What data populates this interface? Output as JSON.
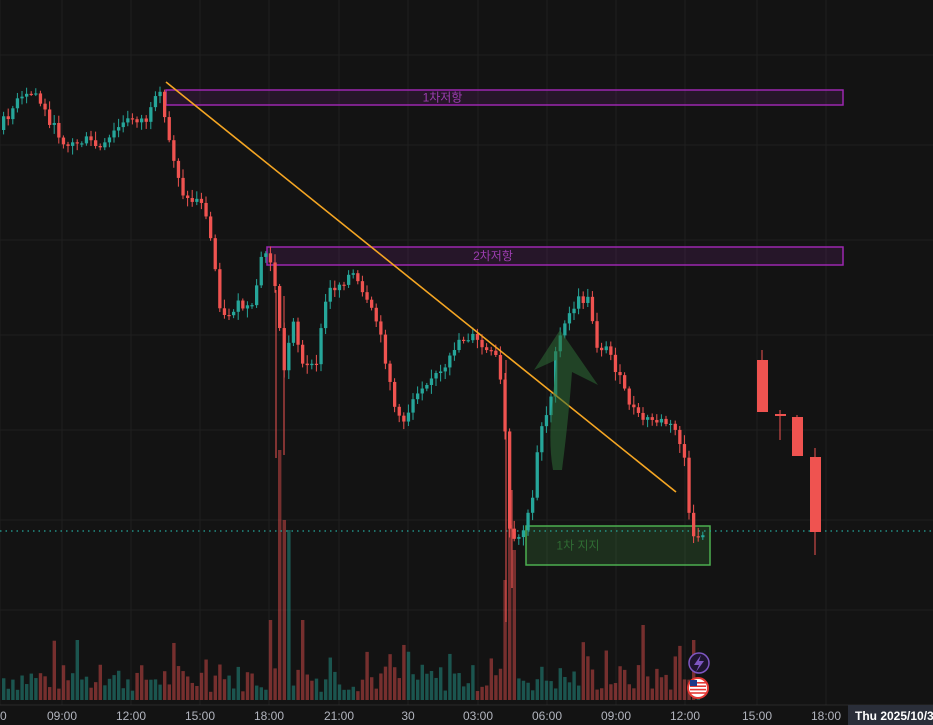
{
  "chart_data": {
    "type": "candlestick",
    "x_ticks": [
      "0",
      "09:00",
      "12:00",
      "15:00",
      "18:00",
      "21:00",
      "30",
      "03:00",
      "06:00",
      "09:00",
      "12:00",
      "15:00",
      "18:00"
    ],
    "crosshair_label": "Thu 2025/10/3",
    "grid": true,
    "zones": [
      {
        "label": "1차저항",
        "kind": "resistance",
        "color": "#9c27b0"
      },
      {
        "label": "2차저항",
        "kind": "resistance",
        "color": "#9c27b0"
      },
      {
        "label": "1차 지지",
        "kind": "support",
        "color": "#4caf50"
      }
    ],
    "trendline": {
      "color": "#f5a623"
    },
    "arrow_annotation": {
      "direction": "up",
      "color": "#2e6b36"
    },
    "price_line": {
      "style": "dotted",
      "color": "#26a69a"
    },
    "up_color": "#26a69a",
    "down_color": "#ef5350",
    "badges": [
      {
        "name": "lightning-badge-icon",
        "color": "#7e57c2"
      },
      {
        "name": "us-flag-icon",
        "color": "#e53935"
      }
    ]
  }
}
